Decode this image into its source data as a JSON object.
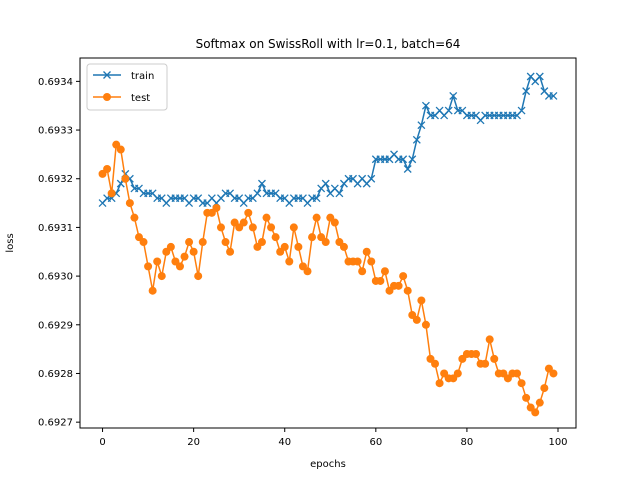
{
  "chart_data": {
    "type": "line",
    "title": "Softmax on SwissRoll with lr=0.1, batch=64",
    "xlabel": "epochs",
    "ylabel": "loss",
    "xlim": [
      -4.95,
      103.95
    ],
    "ylim": [
      0.692688,
      0.693448
    ],
    "xticks": [
      0,
      20,
      40,
      60,
      80,
      100
    ],
    "yticks": [
      0.6927,
      0.6928,
      0.6929,
      0.693,
      0.6931,
      0.6932,
      0.6933,
      0.6934
    ],
    "ytick_labels": [
      "0.6927",
      "0.6928",
      "0.6929",
      "0.6930",
      "0.6931",
      "0.6932",
      "0.6933",
      "0.6934"
    ],
    "legend_position": "top-left",
    "grid": false,
    "series": [
      {
        "name": "train",
        "color": "#1f77b4",
        "marker": "x",
        "x": [
          0,
          1,
          2,
          3,
          4,
          5,
          6,
          7,
          8,
          9,
          10,
          11,
          12,
          13,
          14,
          15,
          16,
          17,
          18,
          19,
          20,
          21,
          22,
          23,
          24,
          25,
          26,
          27,
          28,
          29,
          30,
          31,
          32,
          33,
          34,
          35,
          36,
          37,
          38,
          39,
          40,
          41,
          42,
          43,
          44,
          45,
          46,
          47,
          48,
          49,
          50,
          51,
          52,
          53,
          54,
          55,
          56,
          57,
          58,
          59,
          60,
          61,
          62,
          63,
          64,
          65,
          66,
          67,
          68,
          69,
          70,
          71,
          72,
          73,
          74,
          75,
          76,
          77,
          78,
          79,
          80,
          81,
          82,
          83,
          84,
          85,
          86,
          87,
          88,
          89,
          90,
          91,
          92,
          93,
          94,
          95,
          96,
          97,
          98,
          99
        ],
        "values": [
          0.69315,
          0.69316,
          0.69316,
          0.69317,
          0.69319,
          0.69321,
          0.6932,
          0.69318,
          0.69318,
          0.69317,
          0.69317,
          0.69317,
          0.69316,
          0.69316,
          0.69315,
          0.69316,
          0.69316,
          0.69316,
          0.69316,
          0.69315,
          0.69316,
          0.69316,
          0.69315,
          0.69315,
          0.69316,
          0.69315,
          0.69316,
          0.69317,
          0.69317,
          0.69316,
          0.69316,
          0.69315,
          0.69316,
          0.69316,
          0.69317,
          0.69319,
          0.69317,
          0.69317,
          0.69317,
          0.69316,
          0.69316,
          0.69315,
          0.69316,
          0.69316,
          0.69316,
          0.69315,
          0.69316,
          0.69316,
          0.69318,
          0.69319,
          0.69317,
          0.69318,
          0.69317,
          0.69319,
          0.6932,
          0.6932,
          0.69319,
          0.6932,
          0.69319,
          0.6932,
          0.69324,
          0.69324,
          0.69324,
          0.69324,
          0.69325,
          0.69324,
          0.69324,
          0.69322,
          0.69324,
          0.69328,
          0.69331,
          0.69335,
          0.69333,
          0.69333,
          0.69334,
          0.69333,
          0.69334,
          0.69337,
          0.69334,
          0.69334,
          0.69333,
          0.69333,
          0.69333,
          0.69332,
          0.69333,
          0.69333,
          0.69333,
          0.69333,
          0.69333,
          0.69333,
          0.69333,
          0.69333,
          0.69334,
          0.69338,
          0.69341,
          0.6934,
          0.69341,
          0.69338,
          0.69337,
          0.69337
        ]
      },
      {
        "name": "test",
        "color": "#ff7f0e",
        "marker": "o",
        "x": [
          0,
          1,
          2,
          3,
          4,
          5,
          6,
          7,
          8,
          9,
          10,
          11,
          12,
          13,
          14,
          15,
          16,
          17,
          18,
          19,
          20,
          21,
          22,
          23,
          24,
          25,
          26,
          27,
          28,
          29,
          30,
          31,
          32,
          33,
          34,
          35,
          36,
          37,
          38,
          39,
          40,
          41,
          42,
          43,
          44,
          45,
          46,
          47,
          48,
          49,
          50,
          51,
          52,
          53,
          54,
          55,
          56,
          57,
          58,
          59,
          60,
          61,
          62,
          63,
          64,
          65,
          66,
          67,
          68,
          69,
          70,
          71,
          72,
          73,
          74,
          75,
          76,
          77,
          78,
          79,
          80,
          81,
          82,
          83,
          84,
          85,
          86,
          87,
          88,
          89,
          90,
          91,
          92,
          93,
          94,
          95,
          96,
          97,
          98,
          99
        ],
        "values": [
          0.69321,
          0.69322,
          0.69317,
          0.69327,
          0.69326,
          0.6932,
          0.69315,
          0.69312,
          0.69308,
          0.69307,
          0.69302,
          0.69297,
          0.69303,
          0.693,
          0.69305,
          0.69306,
          0.69303,
          0.69302,
          0.69304,
          0.69307,
          0.69305,
          0.693,
          0.69307,
          0.69313,
          0.69313,
          0.69314,
          0.6931,
          0.69307,
          0.69305,
          0.69311,
          0.6931,
          0.69311,
          0.69313,
          0.6931,
          0.69306,
          0.69307,
          0.69312,
          0.6931,
          0.69308,
          0.69305,
          0.69306,
          0.69303,
          0.6931,
          0.69306,
          0.69302,
          0.69301,
          0.69308,
          0.69312,
          0.69308,
          0.69307,
          0.69312,
          0.69311,
          0.69307,
          0.69306,
          0.69303,
          0.69303,
          0.69303,
          0.69301,
          0.69305,
          0.69303,
          0.69299,
          0.69299,
          0.69301,
          0.69297,
          0.69298,
          0.69298,
          0.693,
          0.69297,
          0.69292,
          0.69291,
          0.69295,
          0.6929,
          0.69283,
          0.69282,
          0.69278,
          0.6928,
          0.69279,
          0.69279,
          0.6928,
          0.69283,
          0.69284,
          0.69284,
          0.69284,
          0.69282,
          0.69282,
          0.69287,
          0.69283,
          0.6928,
          0.6928,
          0.69279,
          0.6928,
          0.6928,
          0.69278,
          0.69275,
          0.69273,
          0.69272,
          0.69274,
          0.69277,
          0.69281,
          0.6928
        ]
      }
    ]
  }
}
